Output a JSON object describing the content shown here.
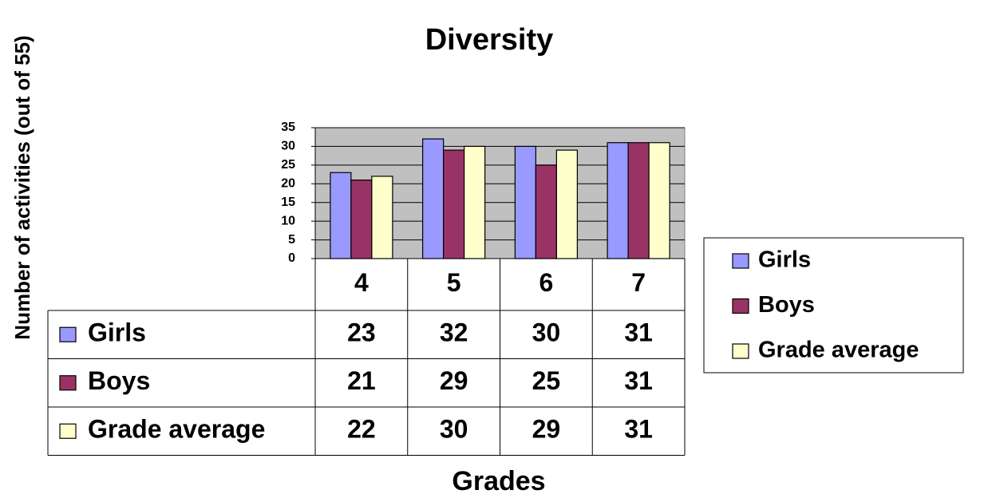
{
  "chart_data": {
    "type": "bar",
    "title": "Diversity",
    "x_label": "Grades",
    "y_label": "Number of activities (out of 55)",
    "categories": [
      "4",
      "5",
      "6",
      "7"
    ],
    "series": [
      {
        "name": "Girls",
        "color": "#9999ff",
        "values": [
          23,
          32,
          30,
          31
        ]
      },
      {
        "name": "Boys",
        "color": "#993366",
        "values": [
          21,
          29,
          25,
          31
        ]
      },
      {
        "name": "Grade average",
        "color": "#ffffcc",
        "values": [
          22,
          30,
          29,
          31
        ]
      }
    ],
    "ylim": [
      0,
      35
    ],
    "yticks": [
      0,
      5,
      10,
      15,
      20,
      25,
      30,
      35
    ],
    "grid": true,
    "legend": "right",
    "data_table": true
  }
}
